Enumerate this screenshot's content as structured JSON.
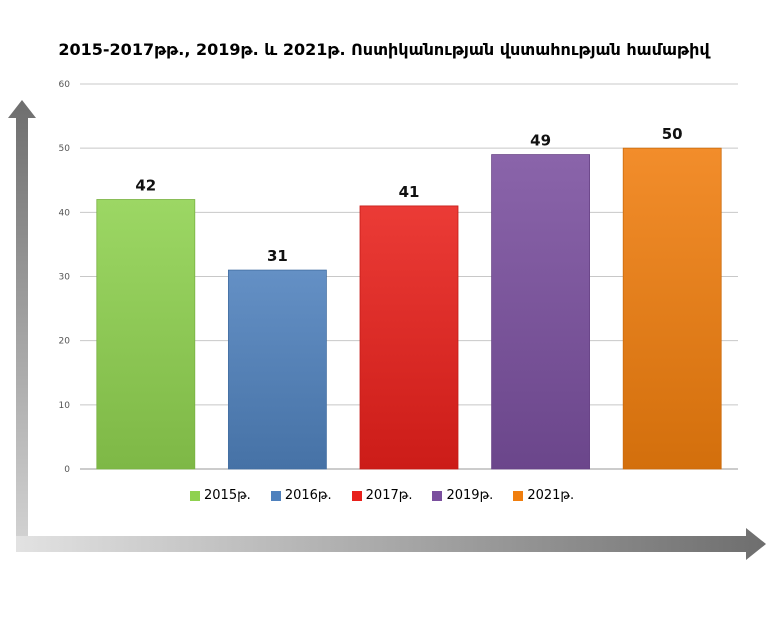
{
  "chart_data": {
    "type": "bar",
    "title": "2015-2017թթ., 2019թ. և 2021թ. Ոստիկանության վստահության համաթիվ",
    "xlabel": "",
    "ylabel": "",
    "ylim": [
      0,
      60
    ],
    "yticks": [
      "0",
      "10",
      "20",
      "30",
      "40",
      "50",
      "60"
    ],
    "grid": true,
    "legend_position": "bottom",
    "categories": [
      "2015թ.",
      "2016թ.",
      "2017թ.",
      "2019թ.",
      "2021թ."
    ],
    "values": [
      42,
      31,
      41,
      49,
      50
    ],
    "data_labels": [
      "42",
      "31",
      "41",
      "49",
      "50"
    ],
    "colors": [
      "#8fd14f",
      "#4f81bd",
      "#e8201b",
      "#7a4f9e",
      "#f07e0e"
    ]
  }
}
